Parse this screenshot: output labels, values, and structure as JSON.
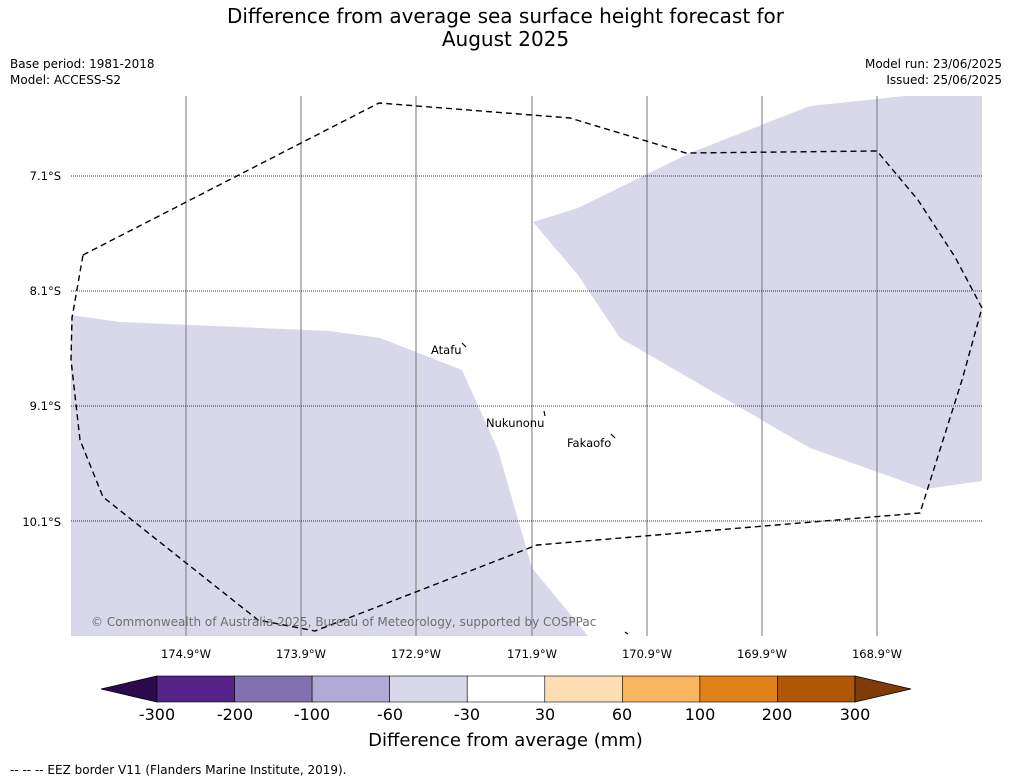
{
  "title_line1": "Difference from average sea surface height forecast for",
  "title_line2": "August 2025",
  "meta": {
    "base_period": "Base period: 1981-2018",
    "model": "Model: ACCESS-S2",
    "model_run": "Model run: 23/06/2025",
    "issued": "Issued: 25/06/2025"
  },
  "map": {
    "latitude_labels": [
      "7.1°S",
      "8.1°S",
      "9.1°S",
      "10.1°S"
    ],
    "longitude_labels": [
      "174.9°W",
      "173.9°W",
      "172.9°W",
      "171.9°W",
      "170.9°W",
      "169.9°W",
      "168.9°W"
    ],
    "places": [
      "Atafu",
      "Nukunonu",
      "Fakaofo"
    ],
    "copyright": "© Commonwealth of Australia 2025, Bureau of Meteorology, supported by COSPPac",
    "shaded_category": "-60 to -30 mm",
    "shaded_color": "#d8d8ea"
  },
  "colorbar": {
    "ticks": [
      "-300",
      "-200",
      "-100",
      "-60",
      "-30",
      "30",
      "60",
      "100",
      "200",
      "300"
    ],
    "colors": [
      "#2d0a4e",
      "#56238a",
      "#8171b0",
      "#b2aad6",
      "#d8d8ea",
      "#ffffff",
      "#fddeb4",
      "#fbb55e",
      "#e08218",
      "#b05706",
      "#7f3b08"
    ],
    "title": "Difference from average (mm)"
  },
  "footnote": "--  --  -- EEZ border V11 (Flanders Marine Institute, 2019)."
}
